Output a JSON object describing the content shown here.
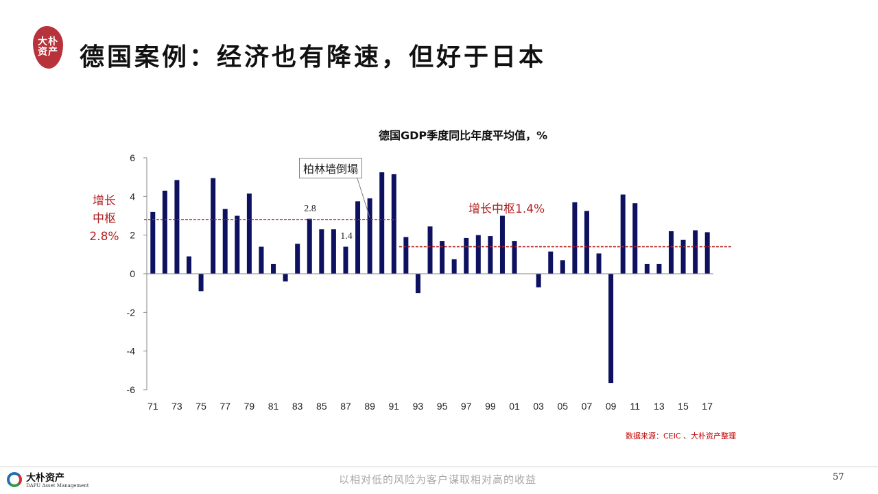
{
  "header": {
    "logo_text": [
      "大朴",
      "资产"
    ],
    "title": "德国案例：经济也有降速，但好于日本"
  },
  "annotations": {
    "left_center": [
      "增长",
      "中枢",
      "2.8%"
    ],
    "right_center": "增长中枢1.4%",
    "callout": "柏林墙倒塌",
    "label_28": "2.8",
    "label_14": "1.4"
  },
  "source": "数据来源：CEIC 、大朴资产整理",
  "footer": {
    "logo_cn": "大朴资产",
    "logo_en": "DAPU Asset Management",
    "slogan": "以相对低的风险为客户谋取相对高的收益",
    "page": "57"
  },
  "colors": {
    "bar": "#0d1160",
    "accent": "#b22222",
    "source": "#c00000"
  },
  "chart_data": {
    "type": "bar",
    "title": "德国GDP季度同比年度平均值，%",
    "xlabel": "",
    "ylabel": "",
    "ylim": [
      -6,
      6
    ],
    "yticks": [
      6,
      4,
      2,
      0,
      -2,
      -4,
      -6
    ],
    "categories": [
      "71",
      "72",
      "73",
      "74",
      "75",
      "76",
      "77",
      "78",
      "79",
      "80",
      "81",
      "82",
      "83",
      "84",
      "85",
      "86",
      "87",
      "88",
      "89",
      "90",
      "91",
      "92",
      "93",
      "94",
      "95",
      "96",
      "97",
      "98",
      "99",
      "00",
      "01",
      "02",
      "03",
      "04",
      "05",
      "06",
      "07",
      "08",
      "09",
      "10",
      "11",
      "12",
      "13",
      "14",
      "15",
      "16",
      "17"
    ],
    "tick_labels": [
      "71",
      "73",
      "75",
      "77",
      "79",
      "81",
      "83",
      "85",
      "87",
      "89",
      "91",
      "93",
      "95",
      "97",
      "99",
      "01",
      "03",
      "05",
      "07",
      "09",
      "11",
      "13",
      "15",
      "17"
    ],
    "values": [
      3.2,
      4.3,
      4.85,
      0.9,
      -0.9,
      4.95,
      3.35,
      3.0,
      4.15,
      1.4,
      0.5,
      -0.4,
      1.55,
      2.85,
      2.3,
      2.3,
      1.4,
      3.75,
      3.9,
      5.25,
      5.15,
      1.9,
      -1.0,
      2.45,
      1.7,
      0.75,
      1.85,
      2.0,
      1.95,
      3.0,
      1.7,
      0.0,
      -0.7,
      1.15,
      0.7,
      3.7,
      3.25,
      1.05,
      -5.65,
      4.1,
      3.65,
      0.5,
      0.5,
      2.2,
      1.75,
      2.25,
      2.15
    ],
    "reference_lines": [
      {
        "value": 2.8,
        "from": "71",
        "to": "91"
      },
      {
        "value": 1.4,
        "from": "92",
        "to": "17"
      }
    ],
    "grid": false,
    "legend": "none"
  }
}
